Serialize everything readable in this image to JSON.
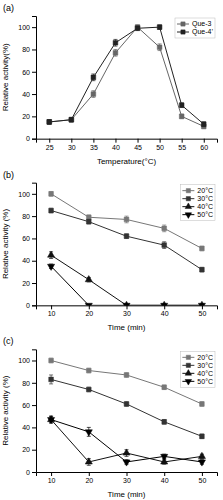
{
  "chart_data": [
    {
      "type": "line",
      "title": "(a)",
      "xlabel": "Temperature(°C)",
      "ylabel": "Relative activity(%)",
      "x": [
        25,
        30,
        35,
        40,
        45,
        50,
        55,
        60
      ],
      "xlim": [
        22,
        63
      ],
      "ylim": [
        0,
        110
      ],
      "xticks": [
        25,
        30,
        35,
        40,
        45,
        50,
        55,
        60
      ],
      "yticks": [
        0,
        20,
        40,
        60,
        80,
        100
      ],
      "legend": "upper right",
      "series": [
        {
          "name": "Que-3",
          "color": "#666666",
          "marker": "square",
          "line_style": "solid",
          "values": [
            15,
            17,
            40,
            77,
            100,
            82,
            20,
            11
          ],
          "errors": [
            2,
            2,
            3,
            3,
            2,
            3,
            2,
            2
          ]
        },
        {
          "name": "Que-4’",
          "color": "#222222",
          "marker": "square",
          "line_style": "solid",
          "values": [
            15,
            17,
            55,
            86,
            99,
            100,
            30,
            13
          ],
          "errors": [
            2,
            2,
            3,
            3,
            2,
            2,
            2,
            2
          ]
        }
      ]
    },
    {
      "type": "line",
      "title": "(b)",
      "xlabel": "Time (min)",
      "ylabel": "Relative activity (%)",
      "x": [
        10,
        20,
        30,
        40,
        50
      ],
      "xlim": [
        6,
        54
      ],
      "ylim": [
        0,
        110
      ],
      "xticks": [
        10,
        20,
        30,
        40,
        50
      ],
      "yticks": [
        0,
        20,
        40,
        60,
        80,
        100
      ],
      "legend": "upper right",
      "series": [
        {
          "name": "20°C",
          "color": "#777777",
          "marker": "square",
          "line_style": "solid",
          "values": [
            100,
            79,
            77,
            69,
            51
          ],
          "errors": [
            2,
            2,
            3,
            3,
            2
          ]
        },
        {
          "name": "30°C",
          "color": "#333333",
          "marker": "square",
          "line_style": "solid",
          "values": [
            85,
            75,
            62,
            54,
            32
          ],
          "errors": [
            2,
            2,
            2,
            3,
            2
          ]
        },
        {
          "name": "40°C",
          "color": "#111111",
          "marker": "triangle-up",
          "line_style": "solid",
          "values": [
            45,
            23,
            0,
            0,
            0
          ],
          "errors": [
            3,
            2,
            0,
            0,
            0
          ]
        },
        {
          "name": "50°C",
          "color": "#000000",
          "marker": "triangle-down",
          "line_style": "solid",
          "values": [
            35,
            0,
            0,
            0,
            0
          ],
          "errors": [
            2,
            0,
            0,
            0,
            0
          ]
        }
      ]
    },
    {
      "type": "line",
      "title": "(c)",
      "xlabel": "Time (min)",
      "ylabel": "Relative activity (%)",
      "x": [
        10,
        20,
        30,
        40,
        50
      ],
      "xlim": [
        6,
        54
      ],
      "ylim": [
        0,
        110
      ],
      "xticks": [
        10,
        20,
        30,
        40,
        50
      ],
      "yticks": [
        0,
        20,
        40,
        60,
        80,
        100
      ],
      "legend": "upper right",
      "series": [
        {
          "name": "20°C",
          "color": "#777777",
          "marker": "square",
          "line_style": "solid",
          "values": [
            100,
            91,
            87,
            76,
            61
          ],
          "errors": [
            2,
            2,
            2,
            2,
            2
          ]
        },
        {
          "name": "30°C",
          "color": "#333333",
          "marker": "square",
          "line_style": "solid",
          "values": [
            83,
            74,
            61,
            45,
            32
          ],
          "errors": [
            4,
            2,
            2,
            2,
            2
          ]
        },
        {
          "name": "40°C",
          "color": "#111111",
          "marker": "triangle-up",
          "line_style": "solid",
          "values": [
            47,
            9,
            17,
            9,
            14
          ],
          "errors": [
            3,
            3,
            3,
            2,
            2
          ]
        },
        {
          "name": "50°C",
          "color": "#000000",
          "marker": "triangle-down",
          "line_style": "solid",
          "values": [
            47,
            36,
            9,
            14,
            9
          ],
          "errors": [
            3,
            4,
            2,
            2,
            2
          ]
        }
      ]
    }
  ]
}
